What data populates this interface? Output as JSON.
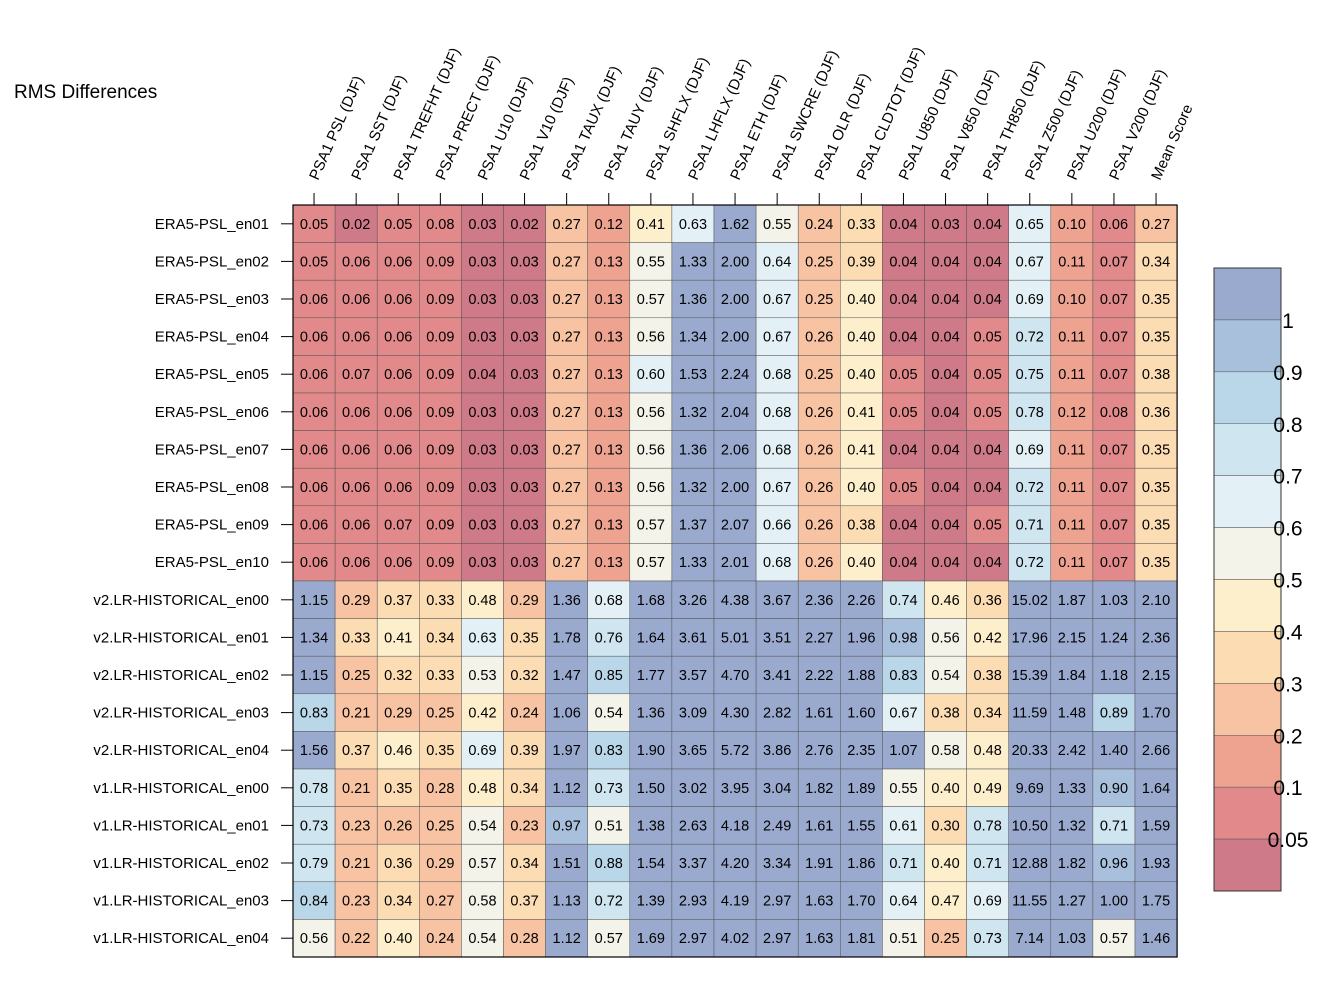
{
  "title": "RMS Differences",
  "chart_data": {
    "type": "heatmap",
    "title": "RMS Differences",
    "columns": [
      "PSA1 PSL (DJF)",
      "PSA1 SST (DJF)",
      "PSA1 TREFHT (DJF)",
      "PSA1 PRECT (DJF)",
      "PSA1 U10 (DJF)",
      "PSA1 V10 (DJF)",
      "PSA1 TAUX (DJF)",
      "PSA1 TAUY (DJF)",
      "PSA1 SHFLX (DJF)",
      "PSA1 LHFLX (DJF)",
      "PSA1 ETH (DJF)",
      "PSA1 SWCRE (DJF)",
      "PSA1 OLR (DJF)",
      "PSA1 CLDTOT (DJF)",
      "PSA1 U850 (DJF)",
      "PSA1 V850 (DJF)",
      "PSA1 TH850 (DJF)",
      "PSA1 Z500 (DJF)",
      "PSA1 U200 (DJF)",
      "PSA1 V200 (DJF)",
      "Mean Score"
    ],
    "rows": [
      "ERA5-PSL_en01",
      "ERA5-PSL_en02",
      "ERA5-PSL_en03",
      "ERA5-PSL_en04",
      "ERA5-PSL_en05",
      "ERA5-PSL_en06",
      "ERA5-PSL_en07",
      "ERA5-PSL_en08",
      "ERA5-PSL_en09",
      "ERA5-PSL_en10",
      "v2.LR-HISTORICAL_en00",
      "v2.LR-HISTORICAL_en01",
      "v2.LR-HISTORICAL_en02",
      "v2.LR-HISTORICAL_en03",
      "v2.LR-HISTORICAL_en04",
      "v1.LR-HISTORICAL_en00",
      "v1.LR-HISTORICAL_en01",
      "v1.LR-HISTORICAL_en02",
      "v1.LR-HISTORICAL_en03",
      "v1.LR-HISTORICAL_en04"
    ],
    "values": [
      [
        "0.05",
        "0.02",
        "0.05",
        "0.08",
        "0.03",
        "0.02",
        "0.27",
        "0.12",
        "0.41",
        "0.63",
        "1.62",
        "0.55",
        "0.24",
        "0.33",
        "0.04",
        "0.03",
        "0.04",
        "0.65",
        "0.10",
        "0.06",
        "0.27"
      ],
      [
        "0.05",
        "0.06",
        "0.06",
        "0.09",
        "0.03",
        "0.03",
        "0.27",
        "0.13",
        "0.55",
        "1.33",
        "2.00",
        "0.64",
        "0.25",
        "0.39",
        "0.04",
        "0.04",
        "0.04",
        "0.67",
        "0.11",
        "0.07",
        "0.34"
      ],
      [
        "0.06",
        "0.06",
        "0.06",
        "0.09",
        "0.03",
        "0.03",
        "0.27",
        "0.13",
        "0.57",
        "1.36",
        "2.00",
        "0.67",
        "0.25",
        "0.40",
        "0.04",
        "0.04",
        "0.04",
        "0.69",
        "0.10",
        "0.07",
        "0.35"
      ],
      [
        "0.06",
        "0.06",
        "0.06",
        "0.09",
        "0.03",
        "0.03",
        "0.27",
        "0.13",
        "0.56",
        "1.34",
        "2.00",
        "0.67",
        "0.26",
        "0.40",
        "0.04",
        "0.04",
        "0.05",
        "0.72",
        "0.11",
        "0.07",
        "0.35"
      ],
      [
        "0.06",
        "0.07",
        "0.06",
        "0.09",
        "0.04",
        "0.03",
        "0.27",
        "0.13",
        "0.60",
        "1.53",
        "2.24",
        "0.68",
        "0.25",
        "0.40",
        "0.05",
        "0.04",
        "0.05",
        "0.75",
        "0.11",
        "0.07",
        "0.38"
      ],
      [
        "0.06",
        "0.06",
        "0.06",
        "0.09",
        "0.03",
        "0.03",
        "0.27",
        "0.13",
        "0.56",
        "1.32",
        "2.04",
        "0.68",
        "0.26",
        "0.41",
        "0.05",
        "0.04",
        "0.05",
        "0.78",
        "0.12",
        "0.08",
        "0.36"
      ],
      [
        "0.06",
        "0.06",
        "0.06",
        "0.09",
        "0.03",
        "0.03",
        "0.27",
        "0.13",
        "0.56",
        "1.36",
        "2.06",
        "0.68",
        "0.26",
        "0.41",
        "0.04",
        "0.04",
        "0.04",
        "0.69",
        "0.11",
        "0.07",
        "0.35"
      ],
      [
        "0.06",
        "0.06",
        "0.06",
        "0.09",
        "0.03",
        "0.03",
        "0.27",
        "0.13",
        "0.56",
        "1.32",
        "2.00",
        "0.67",
        "0.26",
        "0.40",
        "0.05",
        "0.04",
        "0.04",
        "0.72",
        "0.11",
        "0.07",
        "0.35"
      ],
      [
        "0.06",
        "0.06",
        "0.07",
        "0.09",
        "0.03",
        "0.03",
        "0.27",
        "0.13",
        "0.57",
        "1.37",
        "2.07",
        "0.66",
        "0.26",
        "0.38",
        "0.04",
        "0.04",
        "0.05",
        "0.71",
        "0.11",
        "0.07",
        "0.35"
      ],
      [
        "0.06",
        "0.06",
        "0.06",
        "0.09",
        "0.03",
        "0.03",
        "0.27",
        "0.13",
        "0.57",
        "1.33",
        "2.01",
        "0.68",
        "0.26",
        "0.40",
        "0.04",
        "0.04",
        "0.04",
        "0.72",
        "0.11",
        "0.07",
        "0.35"
      ],
      [
        "1.15",
        "0.29",
        "0.37",
        "0.33",
        "0.48",
        "0.29",
        "1.36",
        "0.68",
        "1.68",
        "3.26",
        "4.38",
        "3.67",
        "2.36",
        "2.26",
        "0.74",
        "0.46",
        "0.36",
        "15.02",
        "1.87",
        "1.03",
        "2.10"
      ],
      [
        "1.34",
        "0.33",
        "0.41",
        "0.34",
        "0.63",
        "0.35",
        "1.78",
        "0.76",
        "1.64",
        "3.61",
        "5.01",
        "3.51",
        "2.27",
        "1.96",
        "0.98",
        "0.56",
        "0.42",
        "17.96",
        "2.15",
        "1.24",
        "2.36"
      ],
      [
        "1.15",
        "0.25",
        "0.32",
        "0.33",
        "0.53",
        "0.32",
        "1.47",
        "0.85",
        "1.77",
        "3.57",
        "4.70",
        "3.41",
        "2.22",
        "1.88",
        "0.83",
        "0.54",
        "0.38",
        "15.39",
        "1.84",
        "1.18",
        "2.15"
      ],
      [
        "0.83",
        "0.21",
        "0.29",
        "0.25",
        "0.42",
        "0.24",
        "1.06",
        "0.54",
        "1.36",
        "3.09",
        "4.30",
        "2.82",
        "1.61",
        "1.60",
        "0.67",
        "0.38",
        "0.34",
        "11.59",
        "1.48",
        "0.89",
        "1.70"
      ],
      [
        "1.56",
        "0.37",
        "0.46",
        "0.35",
        "0.69",
        "0.39",
        "1.97",
        "0.83",
        "1.90",
        "3.65",
        "5.72",
        "3.86",
        "2.76",
        "2.35",
        "1.07",
        "0.58",
        "0.48",
        "20.33",
        "2.42",
        "1.40",
        "2.66"
      ],
      [
        "0.78",
        "0.21",
        "0.35",
        "0.28",
        "0.48",
        "0.34",
        "1.12",
        "0.73",
        "1.50",
        "3.02",
        "3.95",
        "3.04",
        "1.82",
        "1.89",
        "0.55",
        "0.40",
        "0.49",
        "9.69",
        "1.33",
        "0.90",
        "1.64"
      ],
      [
        "0.73",
        "0.23",
        "0.26",
        "0.25",
        "0.54",
        "0.23",
        "0.97",
        "0.51",
        "1.38",
        "2.63",
        "4.18",
        "2.49",
        "1.61",
        "1.55",
        "0.61",
        "0.30",
        "0.78",
        "10.50",
        "1.32",
        "0.71",
        "1.59"
      ],
      [
        "0.79",
        "0.21",
        "0.36",
        "0.29",
        "0.57",
        "0.34",
        "1.51",
        "0.88",
        "1.54",
        "3.37",
        "4.20",
        "3.34",
        "1.91",
        "1.86",
        "0.71",
        "0.40",
        "0.71",
        "12.88",
        "1.82",
        "0.96",
        "1.93"
      ],
      [
        "0.84",
        "0.23",
        "0.34",
        "0.27",
        "0.58",
        "0.37",
        "1.13",
        "0.72",
        "1.39",
        "2.93",
        "4.19",
        "2.97",
        "1.63",
        "1.70",
        "0.64",
        "0.47",
        "0.69",
        "11.55",
        "1.27",
        "1.00",
        "1.75"
      ],
      [
        "0.56",
        "0.22",
        "0.40",
        "0.24",
        "0.54",
        "0.28",
        "1.12",
        "0.57",
        "1.69",
        "2.97",
        "4.02",
        "2.97",
        "1.63",
        "1.81",
        "0.51",
        "0.25",
        "0.73",
        "7.14",
        "1.03",
        "0.57",
        "1.46"
      ]
    ],
    "colorbar": {
      "labels": [
        "1",
        "0.9",
        "0.8",
        "0.7",
        "0.6",
        "0.5",
        "0.4",
        "0.3",
        "0.2",
        "0.1",
        "0.05"
      ],
      "colors_top_to_bottom": [
        "#9aaacf",
        "#a8c0dc",
        "#bad7e9",
        "#cfe5f0",
        "#e3f1f6",
        "#f3f3ea",
        "#fdefcb",
        "#fcdcb3",
        "#f7c3a2",
        "#eea391",
        "#e28a8b",
        "#cf7a88"
      ],
      "thresholds": [
        0.05,
        0.1,
        0.2,
        0.3,
        0.4,
        0.5,
        0.6,
        0.7,
        0.8,
        0.9,
        1
      ]
    }
  }
}
